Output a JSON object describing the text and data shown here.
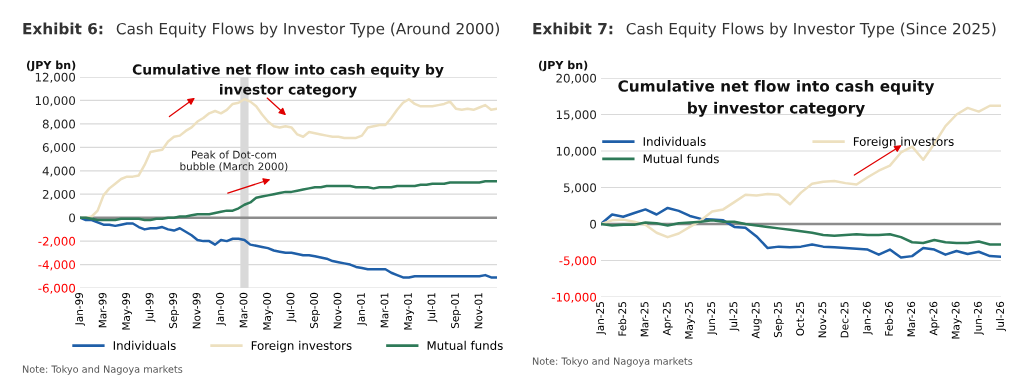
{
  "chart_data": [
    {
      "type": "line",
      "title": "Exhibit 6:",
      "subtitle": "Cash Equity Flows by Investor Type (Around 2000)",
      "ylabel": "(JPY bn)",
      "annotations": [
        "Cumulative net flow into cash equity by investor category",
        "Note: Tokyo and Nagoya markets"
      ],
      "categories": [
        "Jan-99",
        null,
        null,
        null,
        "Mar-99",
        null,
        null,
        null,
        "May-99",
        null,
        null,
        null,
        "Jul-99",
        null,
        null,
        null,
        "Sep-99",
        null,
        null,
        null,
        "Nov-99",
        null,
        null,
        null,
        "Jan-00",
        null,
        null,
        null,
        "Mar-00",
        null,
        null,
        null,
        "May-00",
        null,
        null,
        null,
        "Jul-00",
        null,
        null,
        null,
        "Sep-00",
        null,
        null,
        null,
        "Nov-00",
        null,
        null,
        null,
        "Jan-01",
        null,
        null,
        null,
        "Mar-01",
        null,
        null,
        null,
        "May-01",
        null,
        null,
        null,
        "Jul-01",
        null,
        null,
        null,
        "Sep-01",
        null,
        null,
        null,
        "Nov-01",
        null,
        null,
        null
      ],
      "series": [
        {
          "name": "Individuals",
          "color": "#1f5fa8",
          "values": [
            0,
            -200,
            -200,
            -400,
            -600,
            -600,
            -700,
            -600,
            -500,
            -500,
            -800,
            -1000,
            -900,
            -900,
            -800,
            -1000,
            -1100,
            -900,
            -1200,
            -1500,
            -1900,
            -2000,
            -2000,
            -2300,
            -1900,
            -2000,
            -1800,
            -1800,
            -1900,
            -2300,
            -2400,
            -2500,
            -2600,
            -2800,
            -2900,
            -3000,
            -3000,
            -3100,
            -3200,
            -3200,
            -3300,
            -3400,
            -3500,
            -3700,
            -3800,
            -3900,
            -4000,
            -4200,
            -4300,
            -4400,
            -4400,
            -4400,
            -4400,
            -4700,
            -4900,
            -5100,
            -5100,
            -5000,
            -5000,
            -5000,
            -5000,
            -5000,
            -5000,
            -5000,
            -5000,
            -5000,
            -5000,
            -5000,
            -5000,
            -4900,
            -5100,
            -5100
          ]
        },
        {
          "name": "Foreign investors",
          "color": "#ede0bf",
          "values": [
            0,
            0,
            100,
            600,
            1900,
            2500,
            2900,
            3300,
            3500,
            3500,
            3600,
            4500,
            5600,
            5700,
            5800,
            6500,
            6900,
            7000,
            7400,
            7700,
            8200,
            8500,
            8900,
            9100,
            8900,
            9200,
            9700,
            9800,
            10100,
            9900,
            9500,
            8800,
            8200,
            7800,
            7700,
            7800,
            7700,
            7100,
            6900,
            7300,
            7200,
            7100,
            7000,
            6900,
            6900,
            6800,
            6800,
            6800,
            7000,
            7700,
            7800,
            7900,
            7900,
            8500,
            9200,
            9800,
            10100,
            9700,
            9500,
            9500,
            9500,
            9600,
            9700,
            9900,
            9300,
            9200,
            9300,
            9200,
            9400,
            9600,
            9200,
            9300
          ]
        },
        {
          "name": "Mutual funds",
          "color": "#2e7a58",
          "values": [
            0,
            0,
            -100,
            -200,
            -200,
            -200,
            -200,
            -100,
            -100,
            -100,
            -100,
            -200,
            -200,
            -100,
            -100,
            0,
            0,
            100,
            100,
            200,
            300,
            300,
            300,
            400,
            500,
            600,
            600,
            800,
            1100,
            1300,
            1700,
            1800,
            1900,
            2000,
            2100,
            2200,
            2200,
            2300,
            2400,
            2500,
            2600,
            2600,
            2700,
            2700,
            2700,
            2700,
            2700,
            2600,
            2600,
            2600,
            2500,
            2600,
            2600,
            2600,
            2700,
            2700,
            2700,
            2700,
            2800,
            2800,
            2900,
            2900,
            2900,
            3000,
            3000,
            3000,
            3000,
            3000,
            3000,
            3100,
            3100,
            3100
          ]
        }
      ],
      "ylim": [
        -6000,
        12000
      ],
      "yticks": [
        {
          "value": -6000,
          "label": "-6,000"
        },
        {
          "value": -4000,
          "label": "-4,000"
        },
        {
          "value": -2000,
          "label": "-2,000"
        },
        0,
        {
          "value": 2000,
          "label": "2,000"
        },
        {
          "value": 4000,
          "label": "4,000"
        },
        {
          "value": 6000,
          "label": "6,000"
        },
        {
          "value": 8000,
          "label": "8,000"
        },
        {
          "value": 10000,
          "label": "10,000"
        },
        {
          "value": 12000,
          "label": "12,000"
        }
      ],
      "bands": [
        {
          "axis": "x",
          "from": "Mar-00",
          "to": "Mar-00",
          "label": "Peak of Dot-com bubble (March 2000)",
          "color": "#d9d9d9"
        }
      ],
      "ref_lines": [
        {
          "axis": "y",
          "value": 0,
          "color": "#8c8c8c"
        }
      ],
      "grid": "y",
      "legend": "bottom"
    },
    {
      "type": "line",
      "title": "Exhibit 7:",
      "subtitle": "Cash Equity Flows by Investor Type (Since 2025)",
      "ylabel": "(JPY bn)",
      "annotations": [
        "Cumulative net flow into cash equity by investor category",
        "Note: Tokyo and Nagoya markets"
      ],
      "categories": [
        "Jan-25",
        null,
        "Feb-25",
        null,
        "Mar-25",
        null,
        "Apr-25",
        null,
        "May-25",
        null,
        "Jun-25",
        null,
        "Jul-25",
        null,
        "Aug-25",
        null,
        "Sep-25",
        null,
        "Oct-25",
        null,
        "Nov-25",
        null,
        "Dec-25",
        null,
        "Jan-26",
        null,
        "Feb-26",
        null,
        "Mar-26",
        null,
        "Apr-26",
        null,
        "May-26",
        null,
        "Jun-26",
        null,
        "Jul-26"
      ],
      "series": [
        {
          "name": "Individuals",
          "color": "#1f5fa8",
          "values": [
            0,
            1300,
            1000,
            1500,
            2000,
            1300,
            2200,
            1800,
            1100,
            700,
            600,
            500,
            -400,
            -500,
            -1700,
            -3300,
            -3100,
            -3200,
            -3100,
            -2800,
            -3100,
            -3200,
            -3300,
            -3400,
            -3500,
            -4200,
            -3500,
            -4600,
            -4400,
            -3300,
            -3500,
            -4200,
            -3700,
            -4100,
            -3800,
            -4400,
            -4500
          ]
        },
        {
          "name": "Foreign investors",
          "color": "#ede0bf",
          "values": [
            0,
            500,
            600,
            300,
            -100,
            -1200,
            -1800,
            -1300,
            -400,
            500,
            1700,
            2000,
            3000,
            4000,
            3900,
            4100,
            4000,
            2700,
            4300,
            5500,
            5800,
            5900,
            5600,
            5400,
            6400,
            7300,
            8000,
            9800,
            10600,
            8800,
            11000,
            13400,
            15000,
            15900,
            15400,
            16200,
            16200
          ]
        },
        {
          "name": "Mutual funds",
          "color": "#2e7a58",
          "values": [
            0,
            -200,
            -100,
            -100,
            200,
            100,
            -200,
            100,
            200,
            300,
            500,
            300,
            300,
            0,
            -200,
            -400,
            -600,
            -800,
            -1000,
            -1200,
            -1500,
            -1600,
            -1500,
            -1400,
            -1500,
            -1500,
            -1400,
            -1800,
            -2500,
            -2600,
            -2200,
            -2500,
            -2600,
            -2600,
            -2400,
            -2800,
            -2800
          ]
        }
      ],
      "ylim": [
        -10000,
        20000
      ],
      "yticks": [
        {
          "value": -10000,
          "label": "-10,000"
        },
        {
          "value": -5000,
          "label": "-5,000"
        },
        0,
        {
          "value": 5000,
          "label": "5,000"
        },
        {
          "value": 10000,
          "label": "10,000"
        },
        {
          "value": 15000,
          "label": "15,000"
        },
        {
          "value": 20000,
          "label": "20,000"
        }
      ],
      "ref_lines": [
        {
          "axis": "y",
          "value": 0,
          "color": "#8c8c8c"
        }
      ],
      "grid": "y",
      "legend": "top left"
    }
  ]
}
